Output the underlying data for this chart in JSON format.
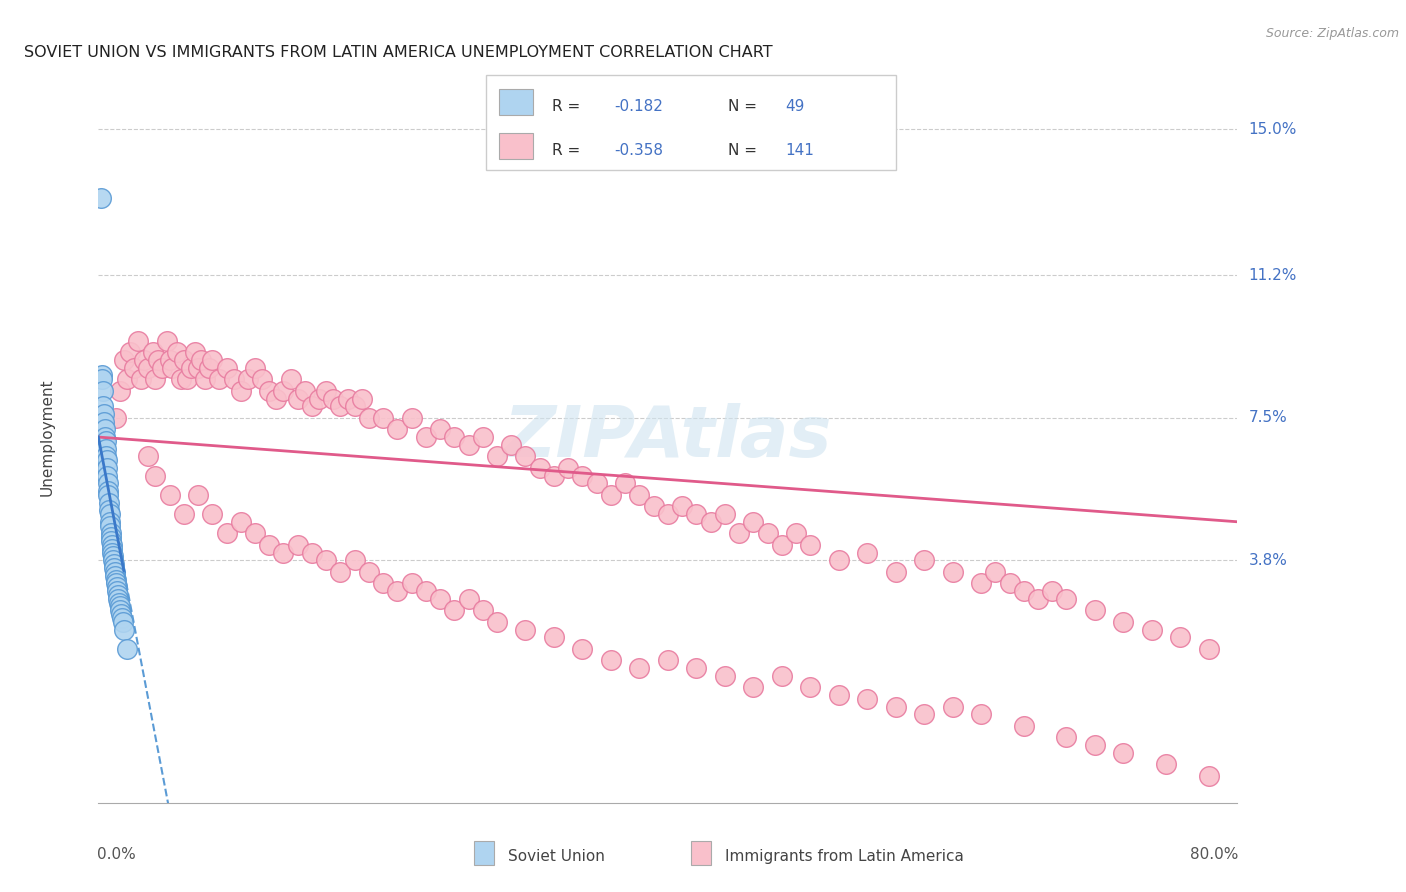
{
  "title": "SOVIET UNION VS IMMIGRANTS FROM LATIN AMERICA UNEMPLOYMENT CORRELATION CHART",
  "source": "Source: ZipAtlas.com",
  "ylabel": "Unemployment",
  "y_ticks": [
    3.8,
    7.5,
    11.2,
    15.0
  ],
  "y_tick_labels": [
    "3.8%",
    "7.5%",
    "11.2%",
    "15.0%"
  ],
  "y_max": 16.5,
  "y_min": -2.5,
  "x_max": 80.0,
  "x_min": 0.0,
  "color_soviet": "#afd4f0",
  "color_latin": "#f9c0cb",
  "color_soviet_edge": "#5b9bd5",
  "color_latin_edge": "#e87ca0",
  "color_soviet_line": "#3a78c9",
  "color_latin_line": "#e05a8a",
  "watermark": "ZIPAtlas",
  "soviet_x": [
    0.18,
    0.22,
    0.28,
    0.32,
    0.35,
    0.38,
    0.42,
    0.45,
    0.48,
    0.5,
    0.52,
    0.55,
    0.58,
    0.6,
    0.62,
    0.65,
    0.68,
    0.7,
    0.72,
    0.75,
    0.78,
    0.8,
    0.82,
    0.85,
    0.88,
    0.9,
    0.92,
    0.95,
    0.98,
    1.0,
    1.05,
    1.08,
    1.12,
    1.15,
    1.18,
    1.2,
    1.25,
    1.28,
    1.32,
    1.35,
    1.4,
    1.45,
    1.5,
    1.55,
    1.6,
    1.65,
    1.7,
    1.8,
    2.0
  ],
  "soviet_y": [
    13.2,
    8.6,
    8.5,
    8.2,
    7.8,
    7.6,
    7.4,
    7.2,
    7.0,
    6.9,
    6.7,
    6.5,
    6.4,
    6.2,
    6.0,
    5.8,
    5.6,
    5.5,
    5.3,
    5.1,
    5.0,
    4.8,
    4.7,
    4.5,
    4.4,
    4.3,
    4.2,
    4.1,
    4.0,
    3.9,
    3.8,
    3.7,
    3.6,
    3.5,
    3.4,
    3.3,
    3.2,
    3.1,
    3.0,
    2.9,
    2.8,
    2.7,
    2.6,
    2.5,
    2.4,
    2.3,
    2.2,
    2.0,
    1.5
  ],
  "latin_x": [
    1.2,
    1.5,
    1.8,
    2.0,
    2.2,
    2.5,
    2.8,
    3.0,
    3.2,
    3.5,
    3.8,
    4.0,
    4.2,
    4.5,
    4.8,
    5.0,
    5.2,
    5.5,
    5.8,
    6.0,
    6.2,
    6.5,
    6.8,
    7.0,
    7.2,
    7.5,
    7.8,
    8.0,
    8.5,
    9.0,
    9.5,
    10.0,
    10.5,
    11.0,
    11.5,
    12.0,
    12.5,
    13.0,
    13.5,
    14.0,
    14.5,
    15.0,
    15.5,
    16.0,
    16.5,
    17.0,
    17.5,
    18.0,
    18.5,
    19.0,
    20.0,
    21.0,
    22.0,
    23.0,
    24.0,
    25.0,
    26.0,
    27.0,
    28.0,
    29.0,
    30.0,
    31.0,
    32.0,
    33.0,
    34.0,
    35.0,
    36.0,
    37.0,
    38.0,
    39.0,
    40.0,
    41.0,
    42.0,
    43.0,
    44.0,
    45.0,
    46.0,
    47.0,
    48.0,
    49.0,
    50.0,
    52.0,
    54.0,
    56.0,
    58.0,
    60.0,
    62.0,
    63.0,
    64.0,
    65.0,
    66.0,
    67.0,
    68.0,
    70.0,
    72.0,
    74.0,
    76.0,
    78.0,
    3.5,
    4.0,
    5.0,
    6.0,
    7.0,
    8.0,
    9.0,
    10.0,
    11.0,
    12.0,
    13.0,
    14.0,
    15.0,
    16.0,
    17.0,
    18.0,
    19.0,
    20.0,
    21.0,
    22.0,
    23.0,
    24.0,
    25.0,
    26.0,
    27.0,
    28.0,
    30.0,
    32.0,
    34.0,
    36.0,
    38.0,
    40.0,
    42.0,
    44.0,
    46.0,
    48.0,
    50.0,
    52.0,
    54.0,
    56.0,
    58.0,
    60.0,
    62.0,
    65.0,
    68.0,
    70.0,
    72.0,
    75.0,
    78.0
  ],
  "latin_y": [
    7.5,
    8.2,
    9.0,
    8.5,
    9.2,
    8.8,
    9.5,
    8.5,
    9.0,
    8.8,
    9.2,
    8.5,
    9.0,
    8.8,
    9.5,
    9.0,
    8.8,
    9.2,
    8.5,
    9.0,
    8.5,
    8.8,
    9.2,
    8.8,
    9.0,
    8.5,
    8.8,
    9.0,
    8.5,
    8.8,
    8.5,
    8.2,
    8.5,
    8.8,
    8.5,
    8.2,
    8.0,
    8.2,
    8.5,
    8.0,
    8.2,
    7.8,
    8.0,
    8.2,
    8.0,
    7.8,
    8.0,
    7.8,
    8.0,
    7.5,
    7.5,
    7.2,
    7.5,
    7.0,
    7.2,
    7.0,
    6.8,
    7.0,
    6.5,
    6.8,
    6.5,
    6.2,
    6.0,
    6.2,
    6.0,
    5.8,
    5.5,
    5.8,
    5.5,
    5.2,
    5.0,
    5.2,
    5.0,
    4.8,
    5.0,
    4.5,
    4.8,
    4.5,
    4.2,
    4.5,
    4.2,
    3.8,
    4.0,
    3.5,
    3.8,
    3.5,
    3.2,
    3.5,
    3.2,
    3.0,
    2.8,
    3.0,
    2.8,
    2.5,
    2.2,
    2.0,
    1.8,
    1.5,
    6.5,
    6.0,
    5.5,
    5.0,
    5.5,
    5.0,
    4.5,
    4.8,
    4.5,
    4.2,
    4.0,
    4.2,
    4.0,
    3.8,
    3.5,
    3.8,
    3.5,
    3.2,
    3.0,
    3.2,
    3.0,
    2.8,
    2.5,
    2.8,
    2.5,
    2.2,
    2.0,
    1.8,
    1.5,
    1.2,
    1.0,
    1.2,
    1.0,
    0.8,
    0.5,
    0.8,
    0.5,
    0.3,
    0.2,
    0.0,
    -0.2,
    0.0,
    -0.2,
    -0.5,
    -0.8,
    -1.0,
    -1.2,
    -1.5,
    -1.8
  ]
}
